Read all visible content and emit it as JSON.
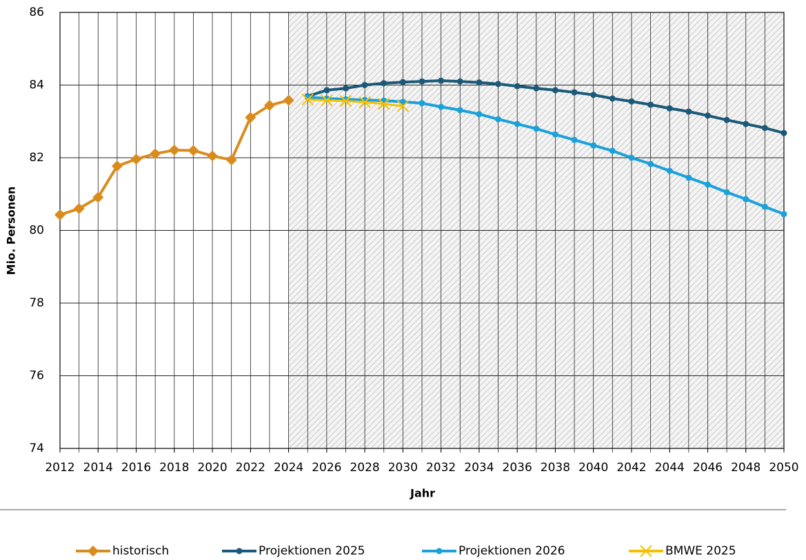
{
  "chart_data": {
    "type": "line",
    "x_label": "Jahr",
    "y_label": "Mio. Personen",
    "xlim": [
      2012,
      2050
    ],
    "ylim": [
      74,
      86
    ],
    "xticks": [
      2012,
      2014,
      2016,
      2018,
      2020,
      2022,
      2024,
      2026,
      2028,
      2030,
      2032,
      2034,
      2036,
      2038,
      2040,
      2042,
      2044,
      2046,
      2048,
      2050
    ],
    "yticks": [
      74,
      76,
      78,
      80,
      82,
      84,
      86
    ],
    "grid": true,
    "shaded_from": 2024,
    "legend": "bottom",
    "series": [
      {
        "name": "historisch",
        "color": "#d98c1d",
        "marker": "diamond",
        "x": [
          2012,
          2013,
          2014,
          2015,
          2016,
          2017,
          2018,
          2019,
          2020,
          2021,
          2022,
          2023,
          2024
        ],
        "values": [
          80.43,
          80.6,
          80.91,
          81.77,
          81.96,
          82.11,
          82.21,
          82.2,
          82.05,
          81.94,
          83.11,
          83.44,
          83.58
        ]
      },
      {
        "name": "Projektionen 2025",
        "color": "#1a5a78",
        "marker": "circle",
        "x": [
          2025,
          2026,
          2027,
          2028,
          2029,
          2030,
          2031,
          2032,
          2033,
          2034,
          2035,
          2036,
          2037,
          2038,
          2039,
          2040,
          2041,
          2042,
          2043,
          2044,
          2045,
          2046,
          2047,
          2048,
          2049,
          2050
        ],
        "values": [
          83.69,
          83.86,
          83.91,
          84.0,
          84.05,
          84.08,
          84.1,
          84.12,
          84.1,
          84.07,
          84.03,
          83.97,
          83.91,
          83.86,
          83.8,
          83.73,
          83.63,
          83.55,
          83.46,
          83.36,
          83.27,
          83.16,
          83.04,
          82.93,
          82.82,
          82.68
        ]
      },
      {
        "name": "Projektionen 2026",
        "color": "#1ba1d9",
        "marker": "circle",
        "x": [
          2025,
          2026,
          2027,
          2028,
          2029,
          2030,
          2031,
          2032,
          2033,
          2034,
          2035,
          2036,
          2037,
          2038,
          2039,
          2040,
          2041,
          2042,
          2043,
          2044,
          2045,
          2046,
          2047,
          2048,
          2049,
          2050
        ],
        "values": [
          83.67,
          83.63,
          83.61,
          83.59,
          83.57,
          83.54,
          83.5,
          83.4,
          83.31,
          83.2,
          83.06,
          82.93,
          82.8,
          82.64,
          82.49,
          82.34,
          82.19,
          82.0,
          81.83,
          81.64,
          81.45,
          81.26,
          81.05,
          80.86,
          80.65,
          80.45
        ]
      },
      {
        "name": "BMWE 2025",
        "color": "#f5c000",
        "marker": "x",
        "x": [
          2025,
          2026,
          2027,
          2028,
          2029,
          2030
        ],
        "values": [
          83.6,
          83.58,
          83.56,
          83.53,
          83.48,
          83.42
        ]
      }
    ]
  }
}
